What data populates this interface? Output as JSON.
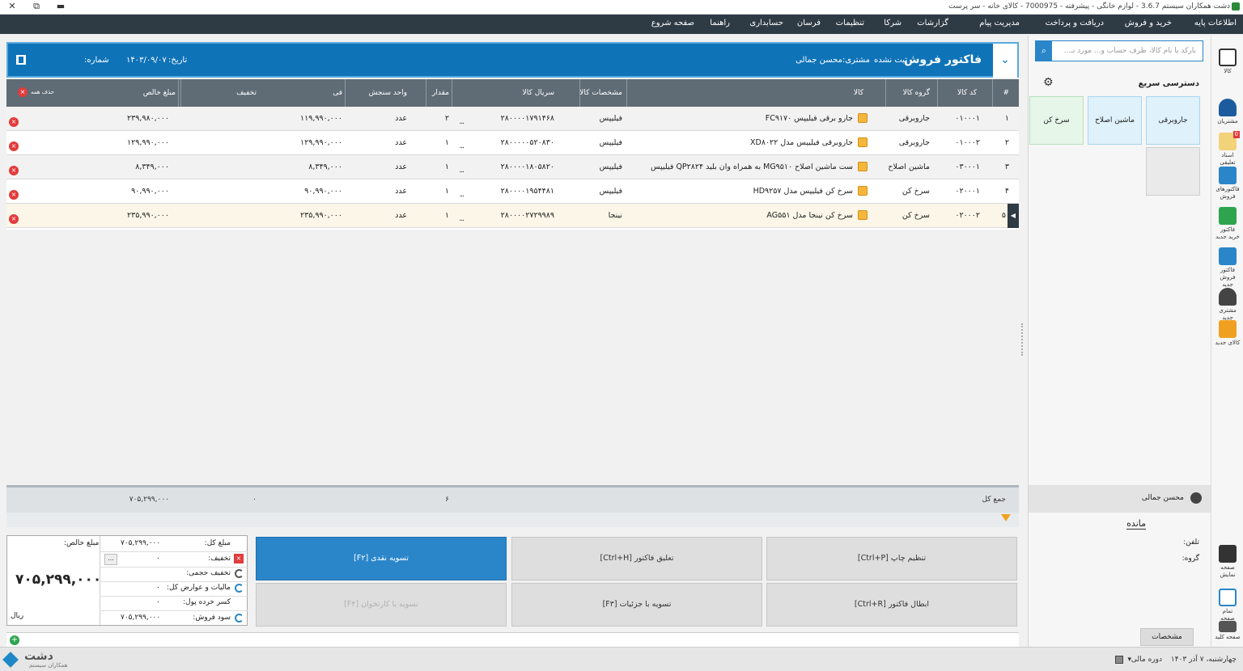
{
  "window": {
    "title": "دشت همکاران سیستم 3.6.7 - لوازم خانگی - پیشرفته - 7000975 - کالای خانه - سر پرست",
    "close": "✕",
    "restore": "⧉",
    "minimize": "▬"
  },
  "menu": [
    "اطلاعات پایه",
    "خرید و فروش",
    "دریافت و پرداخت",
    "مدیریت پیام",
    "گزارشات",
    "شرکا",
    "تنظیمات",
    "فرسان",
    "حسابداری",
    "راهنما",
    "صفحه شروع"
  ],
  "invoice": {
    "title": "فاکتور فروش",
    "status": "ثبت نشده",
    "customer_label": "مشتری:",
    "customer": "محسن جمالی",
    "date_label": "تاریخ:",
    "date": "۱۴۰۳/۰۹/۰۷",
    "number_label": "شماره:"
  },
  "columns": {
    "num": "#",
    "code": "کد کالا",
    "group": "گروه کالا",
    "item": "کالا",
    "spec": "مشخصات کالا",
    "serial": "سریال کالا",
    "qty": "مقدار",
    "unit": "واحد سنجش",
    "price": "فی",
    "discount": "تخفیف",
    "net": "مبلغ خالص",
    "delete_all": "حذف همه"
  },
  "rows": [
    {
      "num": "۱",
      "code": "۰۱۰۰۰۱",
      "group": "جاروبرقی",
      "item": "جارو برقی فیلیپس FC۹۱۷۰",
      "spec": "فیلیپس",
      "serial": "۲۸۰۰۰۰۱۷۹۱۴۶۸",
      "qty": "۲",
      "unit": "عدد",
      "price": "۱۱۹,۹۹۰,۰۰۰",
      "discount": "",
      "net": "۲۳۹,۹۸۰,۰۰۰"
    },
    {
      "num": "۲",
      "code": "۰۱۰۰۰۲",
      "group": "جاروبرقی",
      "item": "جاروبرقی فیلیپس مدل XD۸۰۲۲",
      "spec": "فیلیپس",
      "serial": "۲۸۰۰۰۰۰۵۲۰۸۳۰",
      "qty": "۱",
      "unit": "عدد",
      "price": "۱۲۹,۹۹۰,۰۰۰",
      "discount": "",
      "net": "۱۲۹,۹۹۰,۰۰۰"
    },
    {
      "num": "۳",
      "code": "۰۳۰۰۰۱",
      "group": "ماشین اصلاح",
      "item": "ست ماشین اصلاح MG۹۵۱۰ به همراه وان بلید QP۲۸۲۴ فیلیپس",
      "spec": "فیلیپس",
      "serial": "۲۸۰۰۰۰۱۸۰۵۸۲۰",
      "qty": "۱",
      "unit": "عدد",
      "price": "۸,۳۴۹,۰۰۰",
      "discount": "",
      "net": "۸,۳۴۹,۰۰۰"
    },
    {
      "num": "۴",
      "code": "۰۲۰۰۰۱",
      "group": "سرخ کن",
      "item": "سرخ کن فیلیپس مدل HD۹۲۵۷",
      "spec": "فیلیپس",
      "serial": "۲۸۰۰۰۰۱۹۵۴۴۸۱",
      "qty": "۱",
      "unit": "عدد",
      "price": "۹۰,۹۹۰,۰۰۰",
      "discount": "",
      "net": "۹۰,۹۹۰,۰۰۰"
    },
    {
      "num": "۵",
      "code": "۰۲۰۰۰۲",
      "group": "سرخ کن",
      "item": "سرخ کن نینجا مدل AG۵۵۱",
      "spec": "نینجا",
      "serial": "۲۸۰۰۰۰۲۷۲۹۹۸۹",
      "qty": "۱",
      "unit": "عدد",
      "price": "۲۳۵,۹۹۰,۰۰۰",
      "discount": "",
      "net": "۲۳۵,۹۹۰,۰۰۰"
    }
  ],
  "totals": {
    "label": "جمع کل",
    "qty": "۶",
    "discount": "۰",
    "net": "۷۰۵,۲۹۹,۰۰۰"
  },
  "summary": {
    "net_label": "مبلغ خالص:",
    "big_value": "۷۰۵,۲۹۹,۰۰۰",
    "currency": "ریال",
    "total_label": "مبلغ کل:",
    "total": "۷۰۵,۲۹۹,۰۰۰",
    "discount_label": "تخفیف:",
    "discount": "۰",
    "volume_discount_label": "تخفیف حجمی:",
    "tax_label": "مالیات و عوارض کل:",
    "tax": "۰",
    "rounding_label": "کسر خرده پول:",
    "rounding": "۰",
    "profit_label": "سود فروش:",
    "profit": "۷۰۵,۲۹۹,۰۰۰",
    "ellipsis": "..."
  },
  "buttons": {
    "cash": "تسویه نقدی [F۲]",
    "suspend": "تعلیق فاکتور [Ctrl+H]",
    "print": "تنظیم چاپ [Ctrl+P]",
    "card": "تسویه با کارتخوان [F۴]",
    "details": "تسویه با جزئیات [F۳]",
    "cancel": "ابطال فاکتور [Ctrl+R]"
  },
  "search": {
    "placeholder": "بارکد یا نام کالا، طرف حساب و... مورد نـ...",
    "icon": "search-icon"
  },
  "quick_access": {
    "title": "دسترسی سریع",
    "tiles": [
      "جاروبرقی",
      "ماشین اصلاح",
      "سرخ کن"
    ]
  },
  "customer_panel": {
    "name": "محسن جمالی",
    "balance_label": "مانده",
    "tel_label": "تلفن:",
    "group_label": "گروه:",
    "spec_button": "مشخصات"
  },
  "sidebar": [
    {
      "label": "کالا"
    },
    {
      "label": "مشتریان"
    },
    {
      "label": "اسناد تعلیقی",
      "badge": "0"
    },
    {
      "label": "فاکتورهای فروش"
    },
    {
      "label": "فاکتور خرید جدید"
    },
    {
      "label": "فاکتور فروش جدید"
    },
    {
      "label": "مشتری جدید"
    },
    {
      "label": "کالای جدید"
    },
    {
      "label": "صفحه نمایش"
    },
    {
      "label": "تمام صفحه"
    },
    {
      "label": "صفحه کلید"
    }
  ],
  "statusbar": {
    "date": "چهارشنبه، ۷ آذر ۱۴۰۳",
    "period": "دوره مالی",
    "logo_name": "دشت",
    "logo_sub": "همکاران سیستم"
  },
  "colors": {
    "primary": "#0f73b8",
    "header_gray": "#5f6b75",
    "menubar": "#2e3a44",
    "danger": "#e13c3c",
    "tile1": "#dff1fb",
    "tile3": "#e6f6e9"
  }
}
